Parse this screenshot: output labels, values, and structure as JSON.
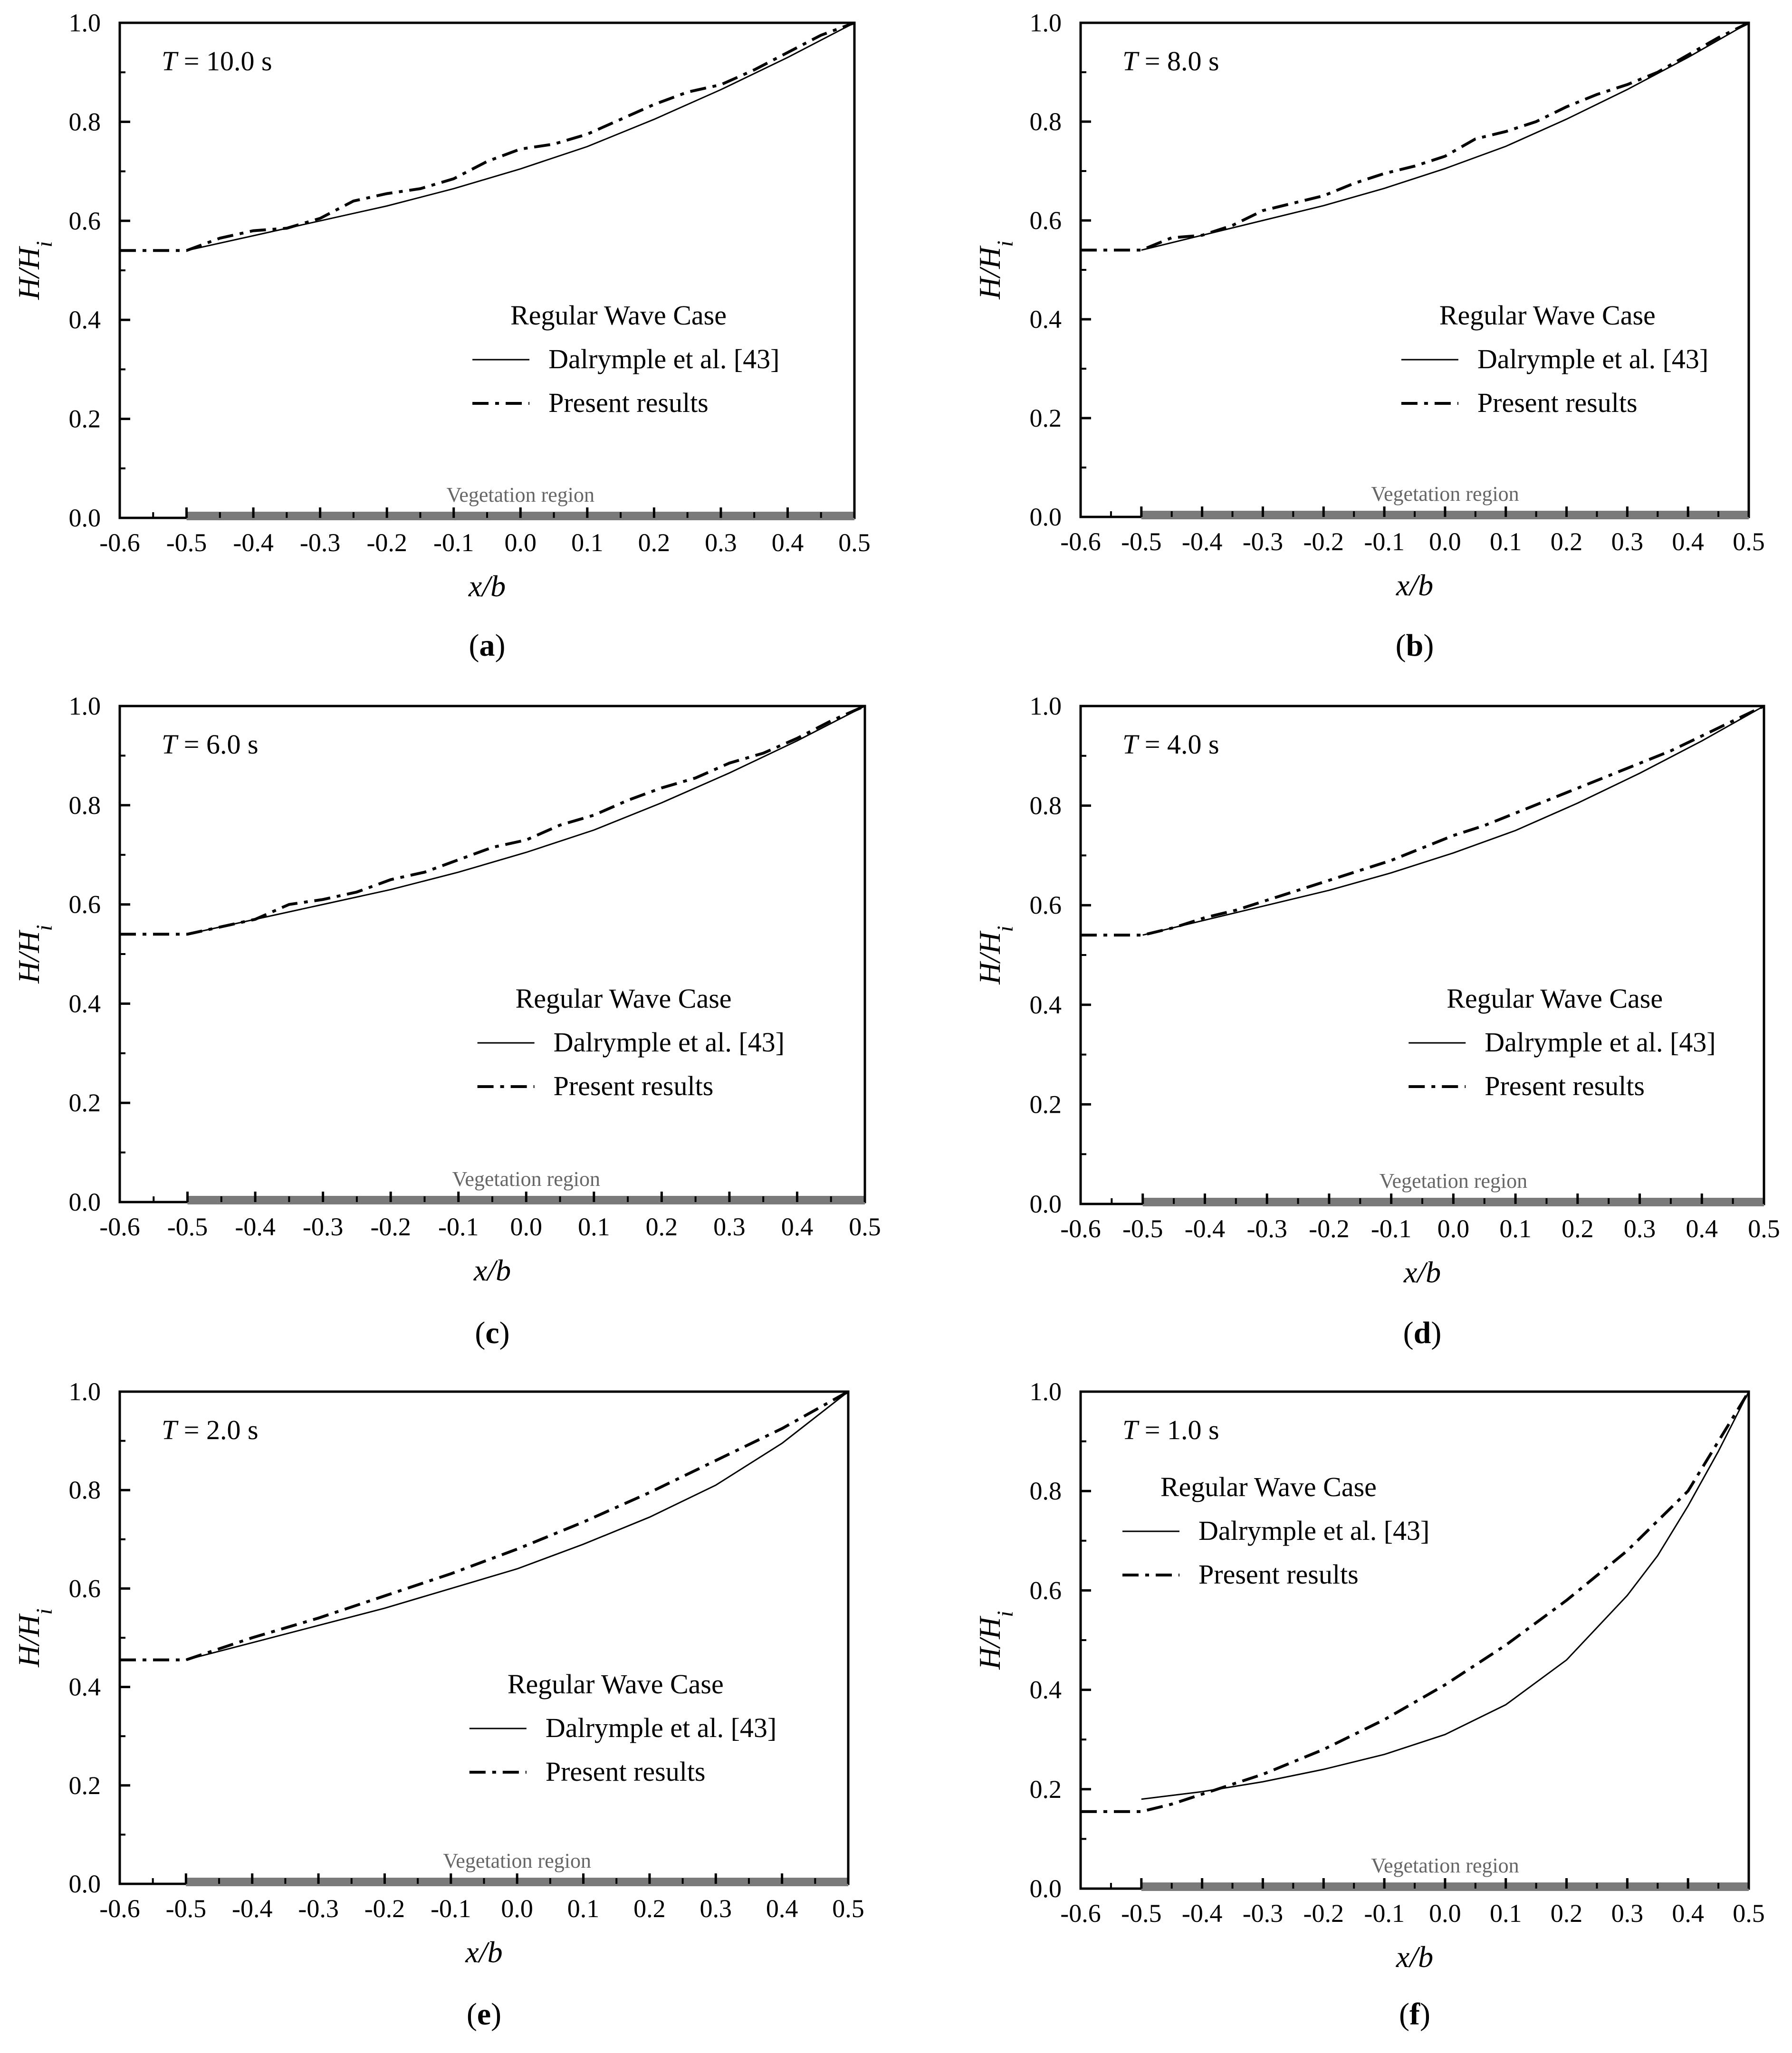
{
  "figure": {
    "x_axis_label": "x/b",
    "y_axis_label": "H/H",
    "y_axis_label_subscript": "i",
    "x_ticks": [
      "-0.6",
      "-0.5",
      "-0.4",
      "-0.3",
      "-0.2",
      "-0.1",
      "0.0",
      "0.1",
      "0.2",
      "0.3",
      "0.4",
      "0.5"
    ],
    "y_ticks": [
      "0.0",
      "0.2",
      "0.4",
      "0.6",
      "0.8",
      "1.0"
    ],
    "legend_title": "Regular Wave Case",
    "legend_entries": [
      "Dalrymple et al. [43]",
      "Present results"
    ],
    "vegetation_label": "Vegetation region",
    "colors": {
      "lines": "#000000",
      "vegetation_bar": "#7a7a7a",
      "vegetation_text": "#666666"
    }
  },
  "chart_data": [
    {
      "type": "line",
      "panel": "a",
      "period_symbol": "T",
      "period_value": "= 10.0 s",
      "xlabel": "x/b",
      "ylabel": "H/Hi",
      "xlim": [
        -0.6,
        0.5
      ],
      "ylim": [
        0.0,
        1.0
      ],
      "legend_position": "center-right",
      "vegetation_region": [
        -0.5,
        0.5
      ],
      "series": [
        {
          "name": "Dalrymple et al. [43]",
          "style": "solid",
          "x": [
            -0.5,
            -0.4,
            -0.3,
            -0.2,
            -0.1,
            0.0,
            0.1,
            0.2,
            0.3,
            0.4,
            0.5
          ],
          "y": [
            0.54,
            0.57,
            0.6,
            0.63,
            0.665,
            0.705,
            0.75,
            0.805,
            0.865,
            0.93,
            1.0
          ]
        },
        {
          "name": "Present results",
          "style": "dash-dot",
          "x": [
            -0.6,
            -0.55,
            -0.5,
            -0.45,
            -0.4,
            -0.35,
            -0.3,
            -0.25,
            -0.2,
            -0.15,
            -0.1,
            -0.05,
            0.0,
            0.05,
            0.1,
            0.15,
            0.2,
            0.25,
            0.3,
            0.35,
            0.4,
            0.45,
            0.5
          ],
          "y": [
            0.54,
            0.54,
            0.54,
            0.565,
            0.58,
            0.585,
            0.605,
            0.64,
            0.655,
            0.665,
            0.685,
            0.72,
            0.745,
            0.755,
            0.775,
            0.805,
            0.835,
            0.86,
            0.875,
            0.905,
            0.94,
            0.975,
            1.0
          ]
        }
      ]
    },
    {
      "type": "line",
      "panel": "b",
      "period_symbol": "T",
      "period_value": "= 8.0 s",
      "xlabel": "x/b",
      "ylabel": "H/Hi",
      "xlim": [
        -0.6,
        0.5
      ],
      "ylim": [
        0.0,
        1.0
      ],
      "legend_position": "center-right",
      "vegetation_region": [
        -0.5,
        0.5
      ],
      "series": [
        {
          "name": "Dalrymple et al. [43]",
          "style": "solid",
          "x": [
            -0.5,
            -0.4,
            -0.3,
            -0.2,
            -0.1,
            0.0,
            0.1,
            0.2,
            0.3,
            0.4,
            0.5
          ],
          "y": [
            0.54,
            0.57,
            0.6,
            0.63,
            0.665,
            0.705,
            0.75,
            0.805,
            0.865,
            0.93,
            1.0
          ]
        },
        {
          "name": "Present results",
          "style": "dash-dot",
          "x": [
            -0.6,
            -0.55,
            -0.5,
            -0.45,
            -0.4,
            -0.35,
            -0.3,
            -0.25,
            -0.2,
            -0.15,
            -0.1,
            -0.05,
            0.0,
            0.05,
            0.1,
            0.15,
            0.2,
            0.25,
            0.3,
            0.35,
            0.4,
            0.45,
            0.5
          ],
          "y": [
            0.54,
            0.54,
            0.54,
            0.565,
            0.57,
            0.59,
            0.62,
            0.635,
            0.65,
            0.675,
            0.695,
            0.71,
            0.73,
            0.765,
            0.78,
            0.8,
            0.83,
            0.855,
            0.875,
            0.9,
            0.935,
            0.97,
            1.0
          ]
        }
      ]
    },
    {
      "type": "line",
      "panel": "c",
      "period_symbol": "T",
      "period_value": "= 6.0 s",
      "xlabel": "x/b",
      "ylabel": "H/Hi",
      "xlim": [
        -0.6,
        0.5
      ],
      "ylim": [
        0.0,
        1.0
      ],
      "legend_position": "center-right",
      "vegetation_region": [
        -0.5,
        0.5
      ],
      "series": [
        {
          "name": "Dalrymple et al. [43]",
          "style": "solid",
          "x": [
            -0.5,
            -0.4,
            -0.3,
            -0.2,
            -0.1,
            0.0,
            0.1,
            0.2,
            0.3,
            0.4,
            0.5
          ],
          "y": [
            0.54,
            0.57,
            0.6,
            0.63,
            0.665,
            0.705,
            0.75,
            0.805,
            0.865,
            0.93,
            1.0
          ]
        },
        {
          "name": "Present results",
          "style": "dash-dot",
          "x": [
            -0.6,
            -0.55,
            -0.5,
            -0.45,
            -0.4,
            -0.35,
            -0.3,
            -0.25,
            -0.2,
            -0.15,
            -0.1,
            -0.05,
            0.0,
            0.05,
            0.1,
            0.15,
            0.2,
            0.25,
            0.3,
            0.35,
            0.4,
            0.45,
            0.5
          ],
          "y": [
            0.54,
            0.54,
            0.54,
            0.555,
            0.57,
            0.6,
            0.61,
            0.625,
            0.65,
            0.665,
            0.69,
            0.715,
            0.73,
            0.76,
            0.78,
            0.81,
            0.835,
            0.855,
            0.885,
            0.905,
            0.935,
            0.97,
            1.0
          ]
        }
      ]
    },
    {
      "type": "line",
      "panel": "d",
      "period_symbol": "T",
      "period_value": "= 4.0 s",
      "xlabel": "x/b",
      "ylabel": "H/Hi",
      "xlim": [
        -0.6,
        0.5
      ],
      "ylim": [
        0.0,
        1.0
      ],
      "legend_position": "center-right",
      "vegetation_region": [
        -0.5,
        0.5
      ],
      "series": [
        {
          "name": "Dalrymple et al. [43]",
          "style": "solid",
          "x": [
            -0.5,
            -0.4,
            -0.3,
            -0.2,
            -0.1,
            0.0,
            0.1,
            0.2,
            0.3,
            0.4,
            0.5
          ],
          "y": [
            0.54,
            0.57,
            0.6,
            0.63,
            0.665,
            0.705,
            0.75,
            0.805,
            0.865,
            0.93,
            1.0
          ]
        },
        {
          "name": "Present results",
          "style": "dash-dot",
          "x": [
            -0.6,
            -0.55,
            -0.5,
            -0.45,
            -0.4,
            -0.35,
            -0.3,
            -0.25,
            -0.2,
            -0.15,
            -0.1,
            -0.05,
            0.0,
            0.05,
            0.1,
            0.15,
            0.2,
            0.25,
            0.3,
            0.35,
            0.4,
            0.45,
            0.5
          ],
          "y": [
            0.54,
            0.54,
            0.54,
            0.555,
            0.575,
            0.59,
            0.61,
            0.63,
            0.65,
            0.67,
            0.69,
            0.715,
            0.74,
            0.76,
            0.785,
            0.81,
            0.835,
            0.86,
            0.885,
            0.91,
            0.94,
            0.97,
            1.0
          ]
        }
      ]
    },
    {
      "type": "line",
      "panel": "e",
      "period_symbol": "T",
      "period_value": "= 2.0 s",
      "xlabel": "x/b",
      "ylabel": "H/Hi",
      "xlim": [
        -0.6,
        0.5
      ],
      "ylim": [
        0.0,
        1.0
      ],
      "legend_position": "center-right",
      "vegetation_region": [
        -0.5,
        0.5
      ],
      "series": [
        {
          "name": "Dalrymple et al. [43]",
          "style": "solid",
          "x": [
            -0.5,
            -0.4,
            -0.3,
            -0.2,
            -0.1,
            0.0,
            0.1,
            0.2,
            0.3,
            0.4,
            0.5
          ],
          "y": [
            0.455,
            0.49,
            0.525,
            0.56,
            0.6,
            0.64,
            0.69,
            0.745,
            0.81,
            0.895,
            1.0
          ]
        },
        {
          "name": "Present results",
          "style": "dash-dot",
          "x": [
            -0.6,
            -0.5,
            -0.4,
            -0.3,
            -0.2,
            -0.1,
            0.0,
            0.1,
            0.2,
            0.3,
            0.4,
            0.5
          ],
          "y": [
            0.455,
            0.455,
            0.5,
            0.54,
            0.585,
            0.63,
            0.68,
            0.735,
            0.795,
            0.86,
            0.925,
            1.0
          ]
        }
      ]
    },
    {
      "type": "line",
      "panel": "f",
      "period_symbol": "T",
      "period_value": "= 1.0 s",
      "xlabel": "x/b",
      "ylabel": "H/Hi",
      "xlim": [
        -0.6,
        0.5
      ],
      "ylim": [
        0.0,
        1.0
      ],
      "legend_position": "top-left",
      "vegetation_region": [
        -0.5,
        0.5
      ],
      "series": [
        {
          "name": "Dalrymple et al. [43]",
          "style": "solid",
          "x": [
            -0.5,
            -0.4,
            -0.3,
            -0.2,
            -0.1,
            0.0,
            0.1,
            0.2,
            0.3,
            0.35,
            0.4,
            0.45,
            0.5
          ],
          "y": [
            0.18,
            0.195,
            0.215,
            0.24,
            0.27,
            0.31,
            0.37,
            0.46,
            0.59,
            0.67,
            0.77,
            0.88,
            1.0
          ]
        },
        {
          "name": "Present results",
          "style": "dash-dot",
          "x": [
            -0.6,
            -0.5,
            -0.45,
            -0.4,
            -0.3,
            -0.2,
            -0.1,
            0.0,
            0.1,
            0.2,
            0.3,
            0.4,
            0.5
          ],
          "y": [
            0.155,
            0.155,
            0.17,
            0.19,
            0.23,
            0.28,
            0.34,
            0.41,
            0.49,
            0.58,
            0.68,
            0.8,
            1.0
          ]
        }
      ]
    }
  ]
}
